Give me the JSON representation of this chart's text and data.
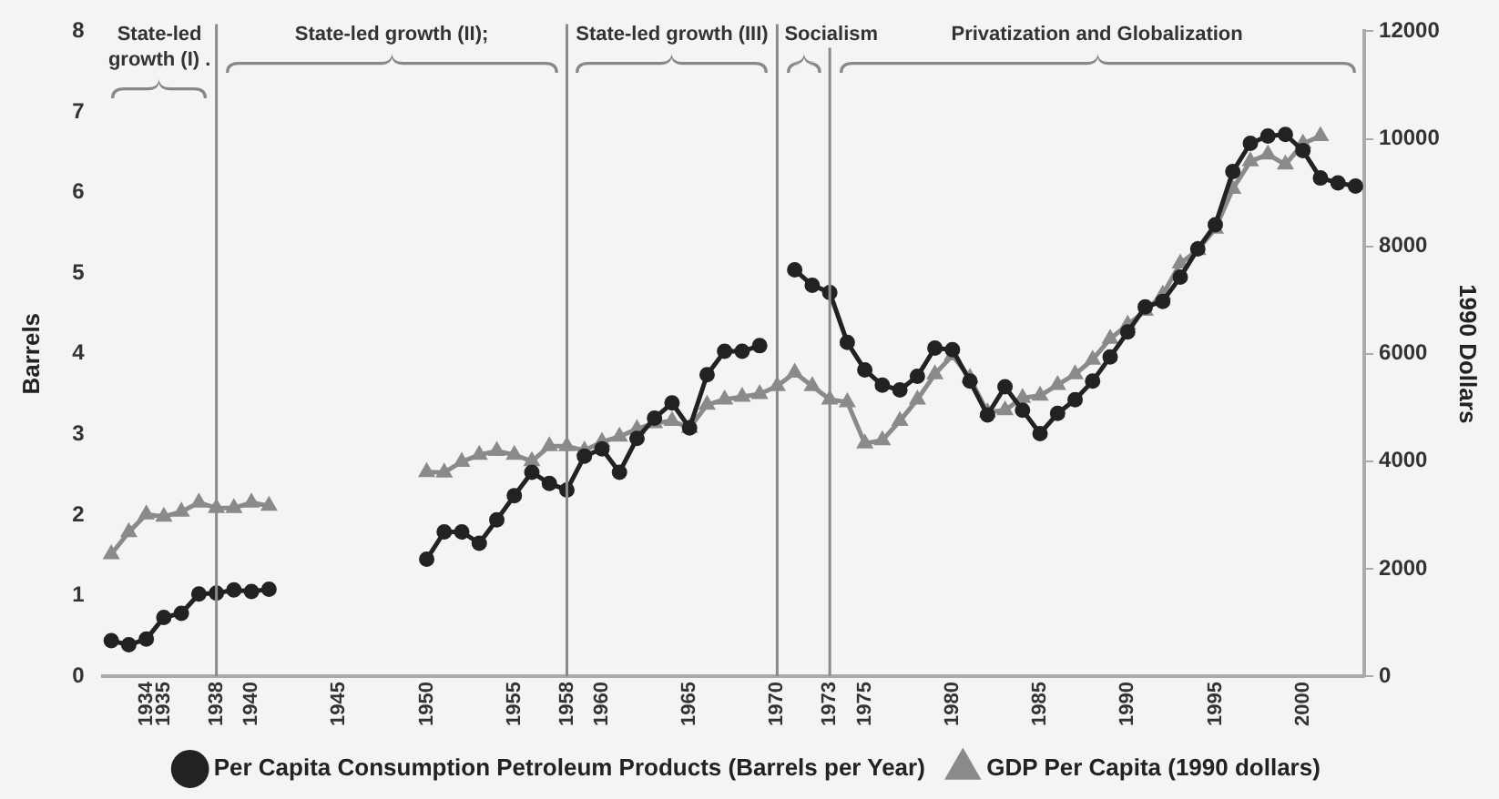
{
  "chart_data": {
    "type": "line",
    "x": [
      1932,
      1933,
      1934,
      1935,
      1936,
      1937,
      1938,
      1939,
      1940,
      1941,
      1942,
      1943,
      1944,
      1945,
      1946,
      1947,
      1948,
      1949,
      1950,
      1951,
      1952,
      1953,
      1954,
      1955,
      1956,
      1957,
      1958,
      1959,
      1960,
      1961,
      1962,
      1963,
      1964,
      1965,
      1966,
      1967,
      1968,
      1969,
      1970,
      1971,
      1972,
      1973,
      1974,
      1975,
      1976,
      1977,
      1978,
      1979,
      1980,
      1981,
      1982,
      1983,
      1984,
      1985,
      1986,
      1987,
      1988,
      1989,
      1990,
      1991,
      1992,
      1993,
      1994,
      1995,
      1996,
      1997,
      1998,
      1999,
      2000,
      2001,
      2002,
      2003
    ],
    "series": [
      {
        "name": "Per Capita Consumption Petroleum Products (Barrels per Year)",
        "color": "#222222",
        "marker": "circle",
        "values": [
          0.44,
          0.39,
          0.46,
          0.73,
          0.78,
          1.02,
          1.03,
          1.07,
          1.05,
          1.08,
          null,
          null,
          null,
          null,
          null,
          null,
          null,
          null,
          1.45,
          1.79,
          1.79,
          1.65,
          1.94,
          2.24,
          2.53,
          2.39,
          2.31,
          2.73,
          2.82,
          2.53,
          2.95,
          3.2,
          3.39,
          3.08,
          3.74,
          4.03,
          4.03,
          4.1,
          null,
          5.04,
          4.85,
          4.76,
          4.14,
          3.8,
          3.61,
          3.55,
          3.72,
          4.07,
          4.05,
          3.66,
          3.24,
          3.59,
          3.3,
          3.01,
          3.26,
          3.43,
          3.66,
          3.96,
          4.27,
          4.58,
          4.65,
          4.95,
          5.3,
          5.6,
          6.26,
          6.61,
          6.7,
          6.72,
          6.52,
          6.18,
          6.12,
          6.08
        ]
      },
      {
        "name": "GDP Per Capita (1990 dollars)",
        "color": "#8a8a8a",
        "marker": "triangle",
        "axis": "y2",
        "values": [
          2270,
          2680,
          3010,
          2970,
          3060,
          3230,
          3130,
          3130,
          3230,
          3170,
          null,
          null,
          null,
          null,
          null,
          null,
          null,
          null,
          3800,
          3790,
          3990,
          4120,
          4190,
          4120,
          4000,
          4280,
          4280,
          4200,
          4360,
          4460,
          4600,
          4710,
          4750,
          4620,
          5050,
          5150,
          5200,
          5250,
          5400,
          5650,
          5400,
          5150,
          5100,
          4330,
          4390,
          4750,
          5150,
          5620,
          5970,
          5550,
          4910,
          4950,
          5180,
          5220,
          5420,
          5620,
          5890,
          6280,
          6540,
          6800,
          7100,
          7680,
          7930,
          8330,
          9070,
          9580,
          9710,
          9520,
          9910,
          10050,
          null,
          null
        ]
      }
    ],
    "ylabel": "Barrels",
    "y2label": "1990 Dollars",
    "xlim": [
      1931.5,
      2003.5
    ],
    "xticks": [
      1934,
      1935,
      1938,
      1940,
      1945,
      1950,
      1955,
      1958,
      1960,
      1965,
      1970,
      1973,
      1975,
      1980,
      1985,
      1990,
      1995,
      2000
    ],
    "ylim": [
      0,
      8
    ],
    "yticks": [
      0,
      1,
      2,
      3,
      4,
      5,
      6,
      7,
      8
    ],
    "y2lim": [
      0,
      12000
    ],
    "y2ticks": [
      0,
      2000,
      4000,
      6000,
      8000,
      10000,
      12000
    ],
    "ref_lines": [
      {
        "axis": "x",
        "value": 1938,
        "color": "#8a8a8a"
      },
      {
        "axis": "x",
        "value": 1958,
        "color": "#8a8a8a"
      },
      {
        "axis": "x",
        "value": 1970,
        "color": "#8a8a8a"
      },
      {
        "axis": "x",
        "value": 1973,
        "color": "#8a8a8a"
      }
    ],
    "annotations": [
      "State-led growth (I) .",
      "State-led growth (II);",
      "State-led growth (III)",
      "Socialism",
      "Privatization and Globalization"
    ],
    "legend": "bottom",
    "grid": false,
    "line_style": "solid"
  }
}
